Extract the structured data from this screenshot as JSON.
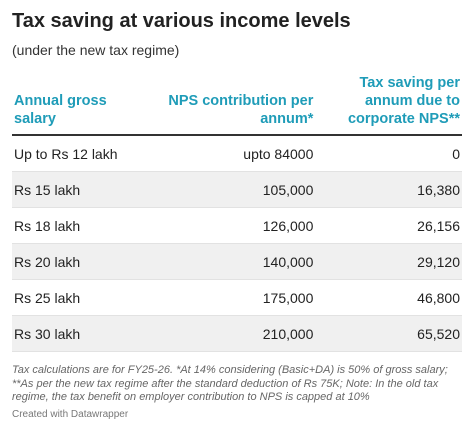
{
  "header": {
    "title": "Tax saving at various income levels",
    "subtitle": "(under the new tax regime)"
  },
  "table": {
    "columns": [
      "Annual gross salary",
      "NPS contribution per annum*",
      "Tax saving per annum due to corporate NPS**"
    ],
    "rows": [
      [
        "Up to Rs 12 lakh",
        "upto 84000",
        "0"
      ],
      [
        "Rs 15 lakh",
        "105,000",
        "16,380"
      ],
      [
        "Rs 18 lakh",
        "126,000",
        "26,156"
      ],
      [
        "Rs 20 lakh",
        "140,000",
        "29,120"
      ],
      [
        "Rs 25 lakh",
        "175,000",
        "46,800"
      ],
      [
        "Rs 30 lakh",
        "210,000",
        "65,520"
      ]
    ]
  },
  "footer": {
    "note": "Tax calculations are for FY25-26. *At 14% considering (Basic+DA) is 50% of gross salary; **As per the new tax regime after the standard deduction of Rs 75K; Note: In the old tax regime, the tax benefit on employer contribution to NPS is capped at 10%",
    "credit": "Created with Datawrapper"
  }
}
